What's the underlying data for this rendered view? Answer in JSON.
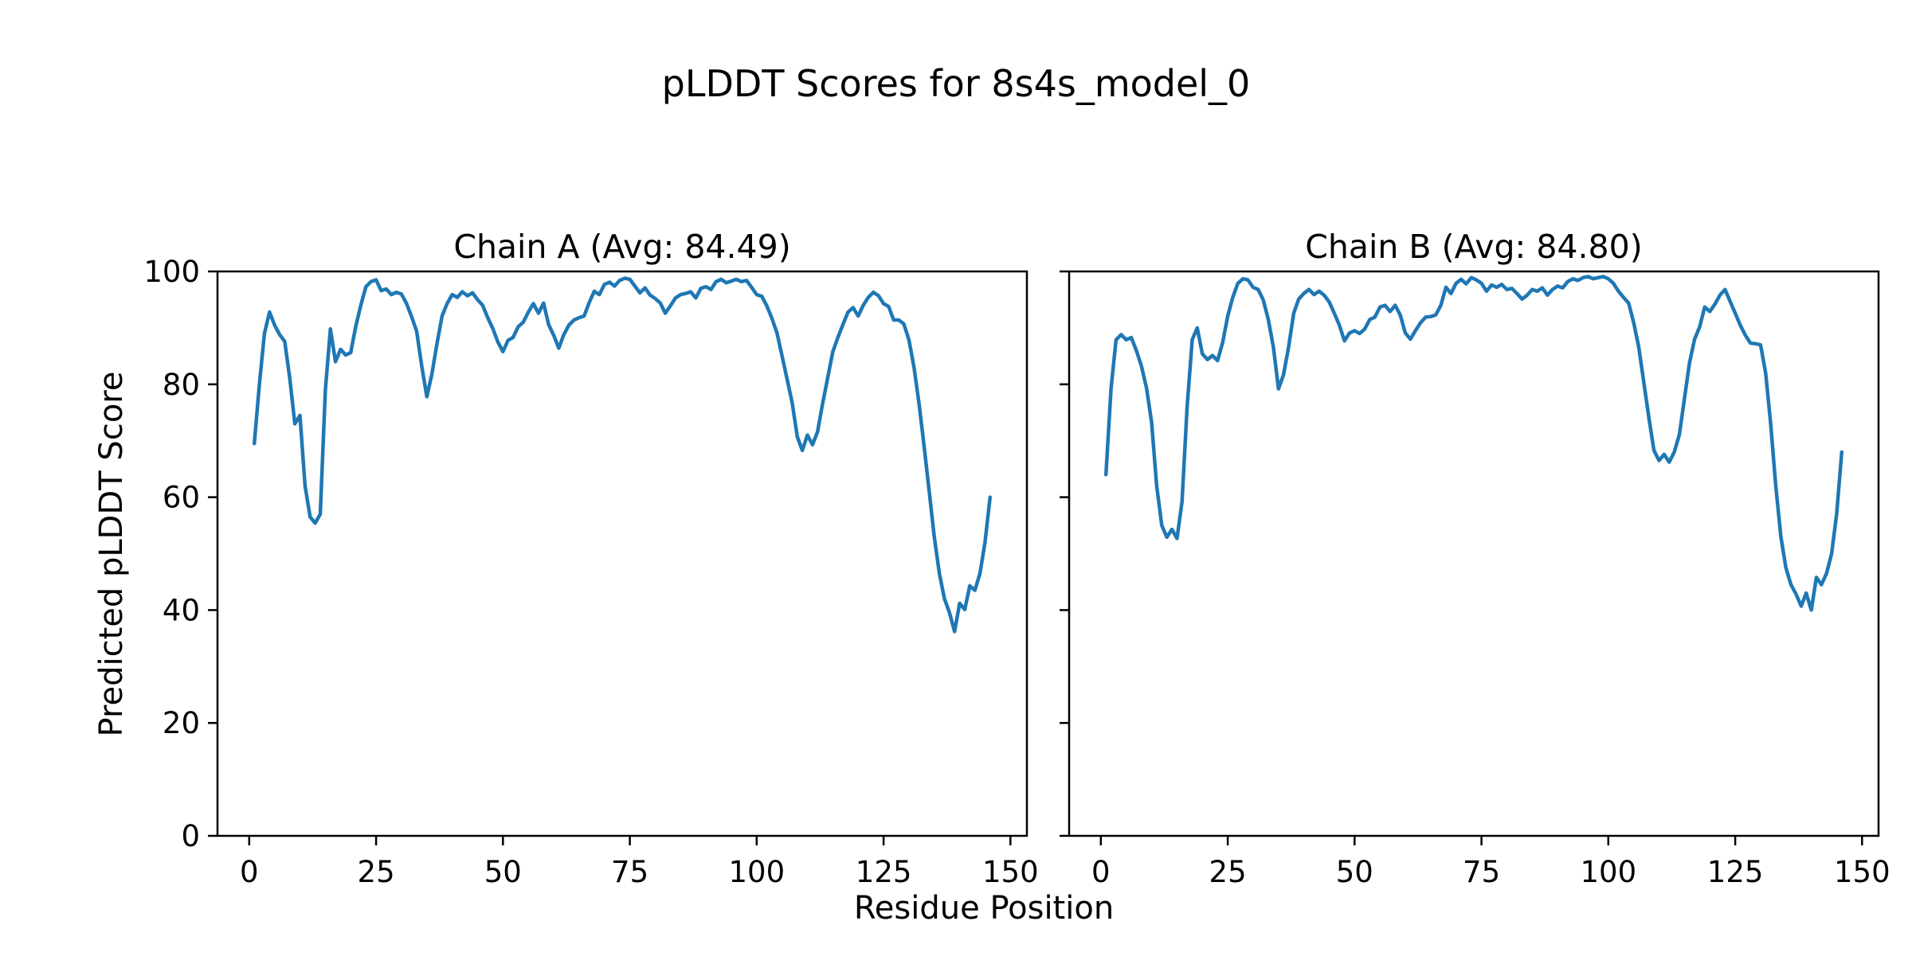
{
  "figure": {
    "title": "pLDDT Scores for 8s4s_model_0",
    "background": "#ffffff"
  },
  "chart_data": {
    "type": "line",
    "figure_title": "pLDDT Scores for 8s4s_model_0",
    "xlabel": "Residue Position",
    "ylabel": "Predicted pLDDT Score",
    "x_ticks": [
      0,
      25,
      50,
      75,
      100,
      125,
      150
    ],
    "y_ticks": [
      0,
      20,
      40,
      60,
      80,
      100
    ],
    "xlim": [
      -6.25,
      153.25
    ],
    "ylim": [
      0,
      100
    ],
    "grid": false,
    "legend": "none",
    "line_color": "#1f77b4",
    "axis_color": "#000000",
    "subplots": [
      {
        "chain": "A",
        "title": "Chain A (Avg: 84.49)",
        "avg": 84.49,
        "x_start": 1,
        "values": [
          69.5,
          80.0,
          89.0,
          92.8,
          90.5,
          88.8,
          87.6,
          81.0,
          73.0,
          74.5,
          62.0,
          56.5,
          55.4,
          57.0,
          79.0,
          89.8,
          84.0,
          86.2,
          85.2,
          85.6,
          90.3,
          94.0,
          97.3,
          98.2,
          98.5,
          96.6,
          96.9,
          95.9,
          96.3,
          96.0,
          94.3,
          92.0,
          89.4,
          83.2,
          77.8,
          81.8,
          87.2,
          92.1,
          94.3,
          95.9,
          95.4,
          96.4,
          95.7,
          96.2,
          95.0,
          94.0,
          91.8,
          89.9,
          87.5,
          85.8,
          87.8,
          88.3,
          90.2,
          91.0,
          92.8,
          94.3,
          92.6,
          94.4,
          90.6,
          88.7,
          86.4,
          88.8,
          90.5,
          91.4,
          91.8,
          92.1,
          94.5,
          96.5,
          95.9,
          97.7,
          98.1,
          97.4,
          98.4,
          98.8,
          98.6,
          97.4,
          96.2,
          97.1,
          95.8,
          95.2,
          94.4,
          92.6,
          93.9,
          95.3,
          95.9,
          96.1,
          96.4,
          95.3,
          97.0,
          97.3,
          96.8,
          98.2,
          98.6,
          98.0,
          98.3,
          98.6,
          98.2,
          98.4,
          97.2,
          95.9,
          95.6,
          93.9,
          91.7,
          89.1,
          85.0,
          80.9,
          76.7,
          70.7,
          68.3,
          71.0,
          69.3,
          71.6,
          76.6,
          81.2,
          85.8,
          88.3,
          90.6,
          92.8,
          93.6,
          92.1,
          94.0,
          95.4,
          96.3,
          95.7,
          94.3,
          93.8,
          91.4,
          91.4,
          90.7,
          87.9,
          83.0,
          76.6,
          69.0,
          61.0,
          53.0,
          46.5,
          42.0,
          39.5,
          36.2,
          41.2,
          40.1,
          44.3,
          43.5,
          46.5,
          52.0,
          60.0
        ]
      },
      {
        "chain": "B",
        "title": "Chain B (Avg: 84.80)",
        "avg": 84.8,
        "x_start": 1,
        "values": [
          64.0,
          79.2,
          87.9,
          88.8,
          87.9,
          88.3,
          86.0,
          83.2,
          79.4,
          73.3,
          62.0,
          55.0,
          52.9,
          54.3,
          52.7,
          59.2,
          76.0,
          87.9,
          90.0,
          85.4,
          84.4,
          85.1,
          84.2,
          87.4,
          92.1,
          95.4,
          97.9,
          98.7,
          98.5,
          97.2,
          96.8,
          95.0,
          91.5,
          86.6,
          79.2,
          81.7,
          86.6,
          92.6,
          95.1,
          96.1,
          96.8,
          95.9,
          96.5,
          95.8,
          94.6,
          92.6,
          90.5,
          87.7,
          89.1,
          89.5,
          89.0,
          89.8,
          91.5,
          91.9,
          93.7,
          94.0,
          92.9,
          94.0,
          92.3,
          89.1,
          88.0,
          89.5,
          90.9,
          91.9,
          92.0,
          92.3,
          94.0,
          97.2,
          96.1,
          97.9,
          98.6,
          97.8,
          98.9,
          98.5,
          97.9,
          96.5,
          97.6,
          97.2,
          97.7,
          96.8,
          97.0,
          96.1,
          95.1,
          95.8,
          96.8,
          96.5,
          97.1,
          95.8,
          96.8,
          97.4,
          97.1,
          98.2,
          98.7,
          98.4,
          98.9,
          99.1,
          98.7,
          98.9,
          99.1,
          98.7,
          97.9,
          96.5,
          95.4,
          94.4,
          90.9,
          86.6,
          80.3,
          74.0,
          68.3,
          66.5,
          67.6,
          66.2,
          68.0,
          71.1,
          77.5,
          83.8,
          88.0,
          90.2,
          93.7,
          92.9,
          94.2,
          95.8,
          96.8,
          94.7,
          92.6,
          90.5,
          88.7,
          87.3,
          87.2,
          87.0,
          82.0,
          73.0,
          62.0,
          53.0,
          47.5,
          44.5,
          42.8,
          40.7,
          43.0,
          40.0,
          45.8,
          44.5,
          46.5,
          50.0,
          57.0,
          68.0
        ]
      }
    ]
  }
}
